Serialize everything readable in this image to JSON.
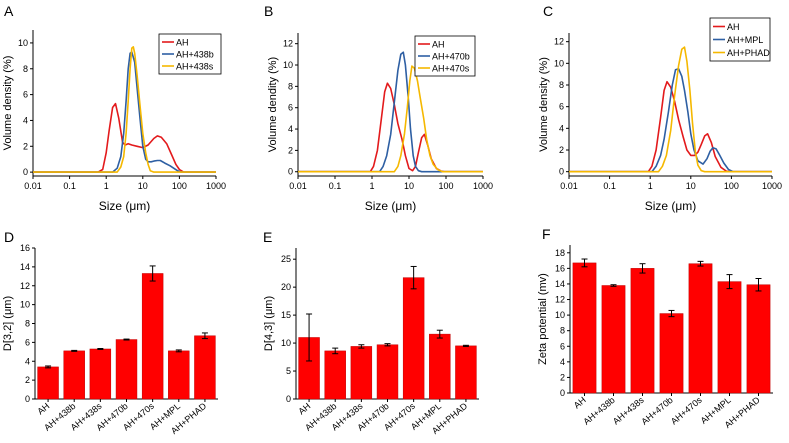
{
  "chart_data": [
    {
      "type": "line",
      "panel_label": "A",
      "title": "",
      "xlabel_prefix": "Size (",
      "xlabel_unit": "μm",
      "xlabel_suffix": ")",
      "ylabel": "Volume density (%)",
      "xscale": "log",
      "xlim": [
        0.01,
        1000
      ],
      "xticks": [
        0.01,
        0.1,
        1,
        10,
        100,
        1000
      ],
      "xtick_labels": [
        "0.01",
        "0.1",
        "1",
        "10",
        "100",
        "1000"
      ],
      "ylim": [
        -0.3,
        11
      ],
      "yticks": [
        0,
        2,
        4,
        6,
        8,
        10
      ],
      "ytick_labels": [
        "0",
        "2",
        "4",
        "6",
        "8",
        "10"
      ],
      "grid": false,
      "legend_position": "top-right",
      "series": [
        {
          "name": "AH",
          "color": "#e31a1c",
          "x": [
            0.01,
            0.6,
            0.8,
            1.0,
            1.2,
            1.5,
            1.8,
            2.2,
            2.8,
            3.3,
            4,
            5,
            7,
            10,
            14,
            20,
            25,
            32,
            45,
            60,
            80,
            100,
            130,
            1000
          ],
          "y": [
            0,
            0,
            0.2,
            1.5,
            3.2,
            5.0,
            5.3,
            4.2,
            2.3,
            2.1,
            2.2,
            2.1,
            2.0,
            1.9,
            2.1,
            2.6,
            2.8,
            2.7,
            2.2,
            1.4,
            0.6,
            0.2,
            0,
            0
          ]
        },
        {
          "name": "AH+438b",
          "color": "#2e5fa3",
          "x": [
            0.01,
            1.5,
            2,
            2.5,
            3,
            3.5,
            4,
            4.5,
            5,
            6,
            7,
            8.5,
            10,
            12,
            14,
            17,
            20,
            25,
            30,
            40,
            55,
            70,
            90,
            110,
            1000
          ],
          "y": [
            0,
            0,
            0.3,
            1.2,
            3.0,
            5.5,
            8.0,
            9.2,
            9.3,
            8.5,
            6.5,
            4.0,
            2.0,
            1.0,
            0.8,
            0.8,
            0.85,
            0.9,
            0.9,
            0.7,
            0.5,
            0.3,
            0.1,
            0,
            0
          ]
        },
        {
          "name": "AH+438s",
          "color": "#f5b800",
          "x": [
            0.01,
            2,
            2.5,
            3,
            3.5,
            4,
            4.5,
            5,
            5.5,
            6,
            7,
            8.5,
            10,
            12,
            14,
            16,
            20,
            1000
          ],
          "y": [
            0,
            0,
            0.4,
            1.2,
            3.0,
            5.5,
            8.0,
            9.6,
            9.7,
            9.2,
            7.5,
            5.0,
            3.0,
            1.5,
            0.6,
            0.1,
            0,
            0
          ]
        }
      ]
    },
    {
      "type": "line",
      "panel_label": "B",
      "title": "",
      "xlabel_prefix": "Size (",
      "xlabel_unit": "μm",
      "xlabel_suffix": ")",
      "ylabel": "Volume dendity (%)",
      "xscale": "log",
      "xlim": [
        0.01,
        1000
      ],
      "xticks": [
        0.01,
        0.1,
        1,
        10,
        100,
        1000
      ],
      "xtick_labels": [
        "0.01",
        "0.1",
        "1",
        "10",
        "100",
        "1000"
      ],
      "ylim": [
        -0.4,
        13
      ],
      "yticks": [
        0,
        2,
        4,
        6,
        8,
        10,
        12
      ],
      "ytick_labels": [
        "0",
        "2",
        "4",
        "6",
        "8",
        "10",
        "12"
      ],
      "grid": false,
      "legend_position": "top-right",
      "series": [
        {
          "name": "AH",
          "color": "#e31a1c",
          "x": [
            0.01,
            0.9,
            1.1,
            1.4,
            1.8,
            2.2,
            2.6,
            3.2,
            4,
            5,
            6.5,
            8,
            10,
            12.5,
            15,
            18,
            22,
            26,
            32,
            40,
            55,
            75,
            90,
            1000
          ],
          "y": [
            0,
            0,
            0.5,
            2.0,
            5.0,
            7.5,
            8.3,
            7.8,
            6.3,
            4.5,
            3.0,
            1.5,
            0.3,
            0.1,
            0.5,
            1.8,
            3.2,
            3.5,
            2.5,
            1.2,
            0.3,
            0.05,
            0,
            0
          ]
        },
        {
          "name": "AH+470b",
          "color": "#2e5fa3",
          "x": [
            0.01,
            1.6,
            2,
            2.5,
            3.2,
            4,
            5,
            6,
            7,
            8,
            9.5,
            11,
            13,
            15,
            18,
            22,
            28,
            1000
          ],
          "y": [
            0,
            0,
            0.5,
            1.5,
            3.5,
            6.5,
            9.5,
            11.0,
            11.2,
            10.0,
            7.0,
            4.0,
            1.5,
            0.5,
            0.1,
            0,
            0,
            0
          ]
        },
        {
          "name": "AH+470s",
          "color": "#f5b800",
          "x": [
            0.01,
            4,
            5,
            6,
            7.5,
            9,
            10.5,
            12,
            14,
            17,
            20,
            25,
            30,
            37,
            45,
            60,
            80,
            150,
            1000
          ],
          "y": [
            0,
            0,
            0.5,
            1.5,
            3.5,
            6.0,
            8.5,
            9.9,
            9.7,
            8.5,
            7.0,
            5.0,
            3.0,
            1.5,
            0.7,
            0.2,
            0,
            0,
            0
          ]
        }
      ]
    },
    {
      "type": "line",
      "panel_label": "C",
      "title": "",
      "xlabel_prefix": "Size (",
      "xlabel_unit": "μm",
      "xlabel_suffix": ")",
      "ylabel": "Volume density (%)",
      "xscale": "log",
      "xlim": [
        0.01,
        1000
      ],
      "xticks": [
        0.01,
        0.1,
        1,
        10,
        100,
        1000
      ],
      "xtick_labels": [
        "0.01",
        "0.1",
        "1",
        "10",
        "100",
        "1000"
      ],
      "ylim": [
        -0.4,
        12.8
      ],
      "yticks": [
        0,
        2,
        4,
        6,
        8,
        10,
        12
      ],
      "ytick_labels": [
        "0",
        "2",
        "4",
        "6",
        "8",
        "10",
        "12"
      ],
      "grid": false,
      "legend_position": "top-right",
      "series": [
        {
          "name": "AH",
          "color": "#e31a1c",
          "x": [
            0.01,
            0.9,
            1.1,
            1.4,
            1.8,
            2.2,
            2.6,
            3.2,
            4,
            5,
            6.5,
            8,
            10,
            12.5,
            15,
            18,
            22,
            26,
            32,
            40,
            55,
            75,
            90,
            1000
          ],
          "y": [
            0,
            0,
            0.5,
            2.0,
            5.0,
            7.5,
            8.3,
            7.8,
            6.5,
            4.8,
            3.2,
            2.0,
            1.5,
            1.5,
            1.8,
            2.5,
            3.3,
            3.5,
            2.7,
            1.4,
            0.4,
            0.05,
            0,
            0
          ]
        },
        {
          "name": "AH+MPL",
          "color": "#2e5fa3",
          "x": [
            0.01,
            1.1,
            1.4,
            1.8,
            2.2,
            2.8,
            3.5,
            4.2,
            5,
            6,
            7,
            8.5,
            10,
            12,
            15,
            20,
            25,
            30,
            35,
            42,
            50,
            65,
            85,
            110,
            1000
          ],
          "y": [
            0,
            0,
            0.5,
            1.5,
            3.0,
            5.5,
            8.0,
            9.4,
            9.5,
            8.8,
            7.5,
            5.5,
            3.5,
            2.0,
            1.0,
            0.7,
            1.2,
            1.9,
            2.2,
            2.1,
            1.6,
            0.8,
            0.2,
            0,
            0
          ]
        },
        {
          "name": "AH+PHAD",
          "color": "#f5b800",
          "x": [
            0.01,
            1.6,
            2,
            2.5,
            3.2,
            4,
            5,
            6,
            7,
            8,
            9.5,
            11,
            13,
            15,
            18,
            22,
            28,
            1000
          ],
          "y": [
            0,
            0,
            0.5,
            1.5,
            3.8,
            7.0,
            9.8,
            11.3,
            11.5,
            10.2,
            7.5,
            4.5,
            1.8,
            0.6,
            0.1,
            0,
            0,
            0
          ]
        }
      ]
    },
    {
      "type": "bar",
      "panel_label": "D",
      "title": "",
      "ylabel": "D[3,2] (μm)",
      "categories": [
        "AH",
        "AH+438b",
        "AH+438s",
        "AH+470b",
        "AH+470s",
        "AH+MPL",
        "AH+PHAD"
      ],
      "values": [
        3.4,
        5.1,
        5.3,
        6.3,
        13.3,
        5.1,
        6.7
      ],
      "errors": [
        0.1,
        0.05,
        0.05,
        0.05,
        0.8,
        0.1,
        0.3
      ],
      "bar_color": "#ff0000",
      "ylim": [
        0,
        16
      ],
      "yticks": [
        0,
        2,
        4,
        6,
        8,
        10,
        12,
        14,
        16
      ],
      "ytick_labels": [
        "0",
        "2",
        "4",
        "6",
        "8",
        "10",
        "12",
        "14",
        "16"
      ],
      "grid": false
    },
    {
      "type": "bar",
      "panel_label": "E",
      "title": "",
      "ylabel": "D[4,3] (μm)",
      "categories": [
        "AH",
        "AH+438b",
        "AH+438s",
        "AH+470b",
        "AH+470s",
        "AH+MPL",
        "AH+PHAD"
      ],
      "values": [
        11.0,
        8.6,
        9.4,
        9.7,
        21.7,
        11.6,
        9.5
      ],
      "errors": [
        4.2,
        0.5,
        0.3,
        0.2,
        2.0,
        0.7,
        0.1
      ],
      "bar_color": "#ff0000",
      "ylim": [
        0,
        27
      ],
      "yticks": [
        0,
        5,
        10,
        15,
        20,
        25
      ],
      "ytick_labels": [
        "0",
        "5",
        "10",
        "15",
        "20",
        "25"
      ],
      "grid": false
    },
    {
      "type": "bar",
      "panel_label": "F",
      "title": "",
      "ylabel": "Zeta potential (mv)",
      "categories": [
        "AH",
        "AH+438b",
        "AH+438s",
        "AH+470b",
        "AH+470s",
        "AH+MPL",
        "AH+PHAD"
      ],
      "values": [
        16.7,
        13.8,
        16.0,
        10.2,
        16.6,
        14.3,
        13.9
      ],
      "errors": [
        0.5,
        0.1,
        0.6,
        0.4,
        0.3,
        0.9,
        0.8
      ],
      "bar_color": "#ff0000",
      "ylim": [
        0,
        19
      ],
      "yticks": [
        0,
        2,
        4,
        6,
        8,
        10,
        12,
        14,
        16,
        18
      ],
      "ytick_labels": [
        "0",
        "2",
        "4",
        "6",
        "8",
        "10",
        "12",
        "14",
        "16",
        "18"
      ],
      "grid": false
    }
  ]
}
